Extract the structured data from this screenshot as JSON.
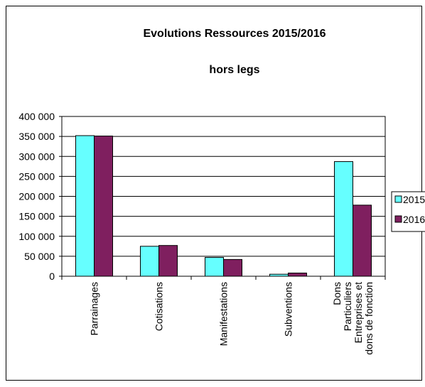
{
  "chart_data": {
    "type": "bar",
    "title": "Evolutions Ressources 2015/2016",
    "subtitle": "hors legs",
    "categories": [
      [
        "Parrainages"
      ],
      [
        "Cotisations"
      ],
      [
        "Manifestations"
      ],
      [
        "Subventions"
      ],
      [
        "Dons",
        "Particuliers",
        "Entreprises et",
        "dons de fonction"
      ]
    ],
    "series": [
      {
        "name": "2015",
        "color": "#66FFFF",
        "values": [
          352000,
          75000,
          47000,
          5000,
          287000
        ]
      },
      {
        "name": "2016",
        "color": "#7F1F5F",
        "values": [
          351000,
          77000,
          42000,
          8000,
          178000
        ]
      }
    ],
    "ylim": [
      0,
      400000
    ],
    "yticks": [
      0,
      50000,
      100000,
      150000,
      200000,
      250000,
      300000,
      350000,
      400000
    ],
    "ytick_labels": [
      "0",
      "50 000",
      "100 000",
      "150 000",
      "200 000",
      "250 000",
      "300 000",
      "350 000",
      "400 000"
    ],
    "grid": true,
    "legend_position": "right"
  }
}
